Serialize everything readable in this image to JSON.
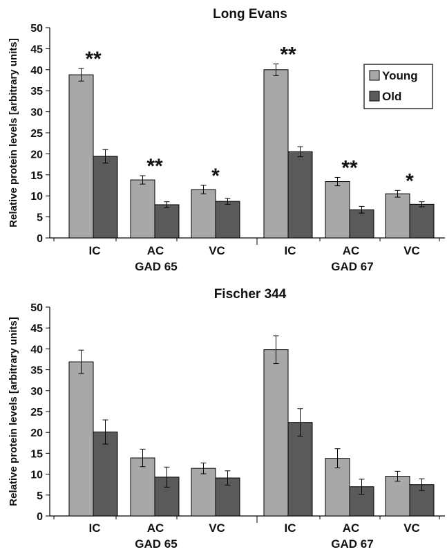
{
  "colors": {
    "young": "#a8a8a8",
    "old": "#5a5a5a",
    "stroke": "#000000"
  },
  "chart_data": [
    {
      "type": "bar",
      "title": "Long Evans",
      "ylabel": "Relative protein levels [arbitrary units]",
      "ylim": [
        0,
        50
      ],
      "yticks": [
        0,
        5,
        10,
        15,
        20,
        25,
        30,
        35,
        40,
        45,
        50
      ],
      "grid": false,
      "legend_position": "top-right",
      "groups": [
        {
          "label": "GAD 65",
          "categories": [
            "IC",
            "AC",
            "VC"
          ]
        },
        {
          "label": "GAD 67",
          "categories": [
            "IC",
            "AC",
            "VC"
          ]
        }
      ],
      "categories": [
        "IC",
        "AC",
        "VC",
        "IC",
        "AC",
        "VC"
      ],
      "series": [
        {
          "name": "Young",
          "values": [
            38.8,
            13.8,
            11.5,
            40.0,
            13.4,
            10.5
          ],
          "errors": [
            1.5,
            1.0,
            1.0,
            1.4,
            1.0,
            0.8
          ]
        },
        {
          "name": "Old",
          "values": [
            19.4,
            7.9,
            8.7,
            20.5,
            6.7,
            8.0
          ],
          "errors": [
            1.6,
            0.7,
            0.7,
            1.2,
            0.8,
            0.6
          ]
        }
      ],
      "annotations": [
        "**",
        "**",
        "*",
        "**",
        "**",
        "*"
      ]
    },
    {
      "type": "bar",
      "title": "Fischer 344",
      "ylabel": "Relative protein levels [arbitrary units]",
      "ylim": [
        0,
        50
      ],
      "yticks": [
        0,
        5,
        10,
        15,
        20,
        25,
        30,
        35,
        40,
        45,
        50
      ],
      "grid": false,
      "groups": [
        {
          "label": "GAD 65",
          "categories": [
            "IC",
            "AC",
            "VC"
          ]
        },
        {
          "label": "GAD 67",
          "categories": [
            "IC",
            "AC",
            "VC"
          ]
        }
      ],
      "categories": [
        "IC",
        "AC",
        "VC",
        "IC",
        "AC",
        "VC"
      ],
      "series": [
        {
          "name": "Young",
          "values": [
            36.9,
            13.9,
            11.4,
            39.8,
            13.8,
            9.5
          ],
          "errors": [
            2.8,
            2.1,
            1.3,
            3.3,
            2.3,
            1.2
          ]
        },
        {
          "name": "Old",
          "values": [
            20.1,
            9.3,
            9.1,
            22.4,
            7.0,
            7.5
          ],
          "errors": [
            2.9,
            2.4,
            1.7,
            3.3,
            1.8,
            1.4
          ]
        }
      ]
    }
  ]
}
